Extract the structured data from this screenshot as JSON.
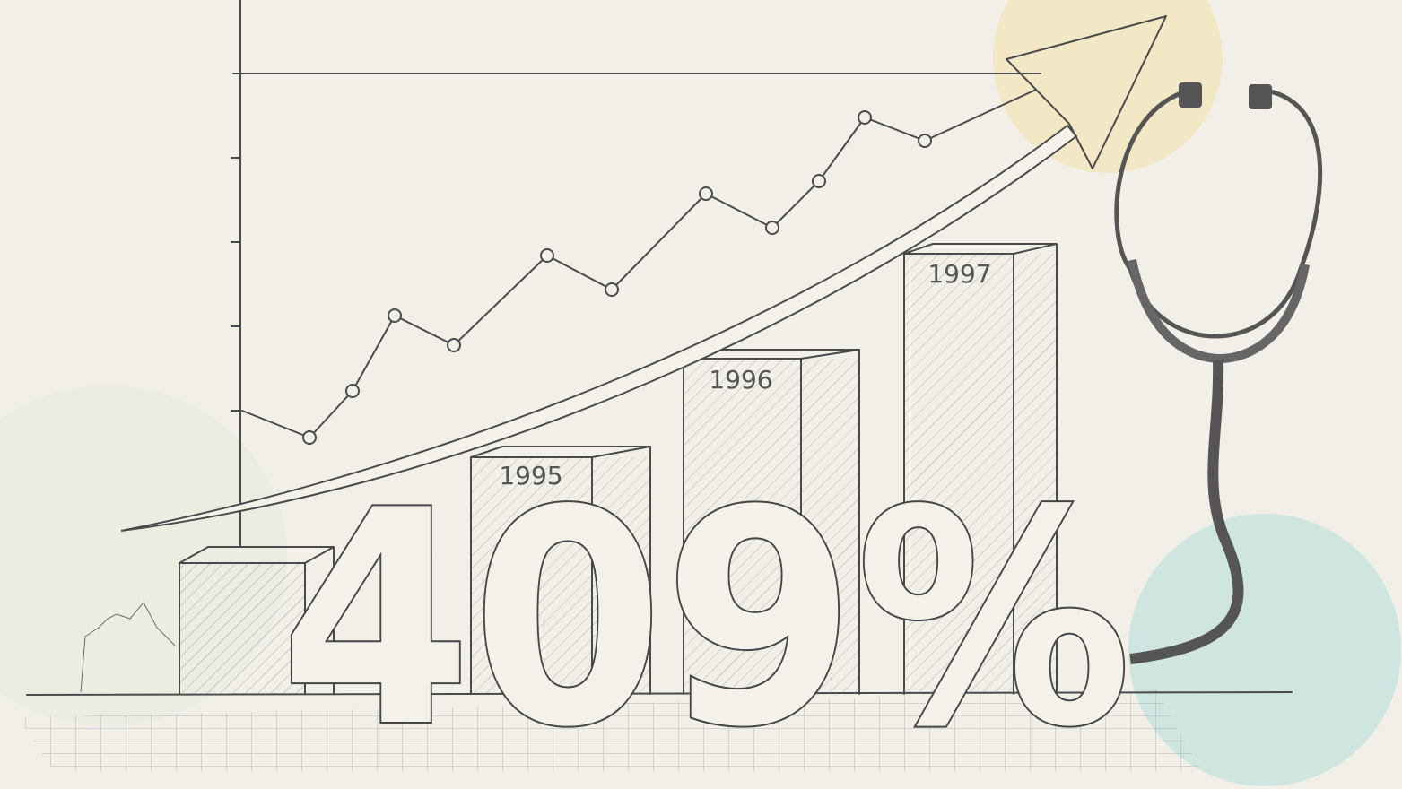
{
  "illustration": {
    "headline": "409%",
    "bar_labels": [
      "1995",
      "1996",
      "1997"
    ]
  }
}
